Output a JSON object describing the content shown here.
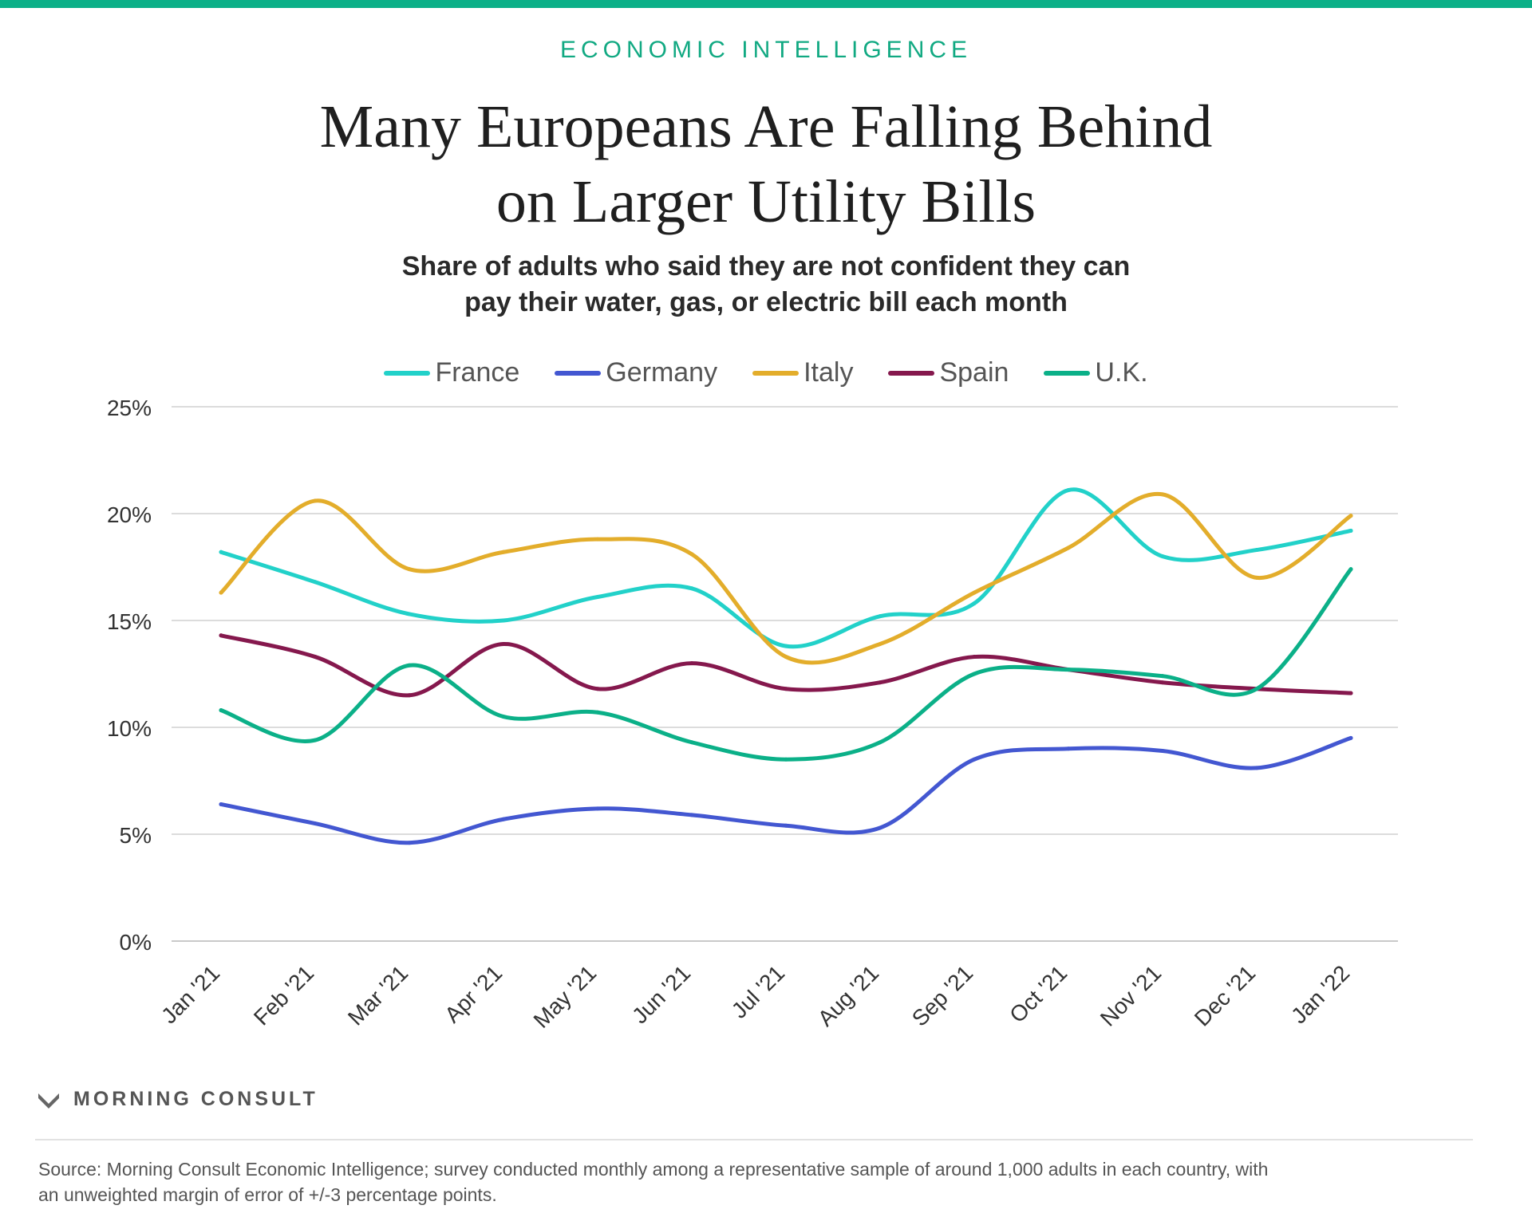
{
  "header": {
    "kicker": "ECONOMIC INTELLIGENCE",
    "title_line1": "Many Europeans Are Falling Behind",
    "title_line2": "on Larger Utility Bills",
    "subtitle_line1": "Share of adults who said they are not confident they can",
    "subtitle_line2": "pay their water, gas, or electric bill each month"
  },
  "chart_data": {
    "type": "line",
    "title": "Many Europeans Are Falling Behind on Larger Utility Bills",
    "subtitle": "Share of adults who said they are not confident they can pay their water, gas, or electric bill each month",
    "x": [
      "Jan '21",
      "Feb '21",
      "Mar '21",
      "Apr '21",
      "May '21",
      "Jun '21",
      "Jul '21",
      "Aug '21",
      "Sep '21",
      "Oct '21",
      "Nov '21",
      "Dec '21",
      "Jan '22"
    ],
    "ylim": [
      0,
      25
    ],
    "yticks": [
      0,
      5,
      10,
      15,
      20,
      25
    ],
    "ytick_labels": [
      "0%",
      "5%",
      "10%",
      "15%",
      "20%",
      "25%"
    ],
    "grid": true,
    "legend_position": "top-center",
    "series": [
      {
        "name": "France",
        "color": "#22d1c9",
        "values": [
          18.2,
          16.8,
          15.3,
          15.0,
          16.1,
          16.5,
          13.8,
          15.2,
          15.8,
          21.1,
          18.0,
          18.3,
          19.2
        ]
      },
      {
        "name": "Germany",
        "color": "#4357d1",
        "values": [
          6.4,
          5.5,
          4.6,
          5.7,
          6.2,
          5.9,
          5.4,
          5.3,
          8.5,
          9.0,
          8.9,
          8.1,
          9.5
        ]
      },
      {
        "name": "Italy",
        "color": "#e3ad2b",
        "values": [
          16.3,
          20.6,
          17.4,
          18.2,
          18.8,
          18.1,
          13.3,
          13.9,
          16.3,
          18.4,
          20.9,
          17.0,
          19.9
        ]
      },
      {
        "name": "Spain",
        "color": "#85184d",
        "values": [
          14.3,
          13.3,
          11.5,
          13.9,
          11.8,
          13.0,
          11.8,
          12.1,
          13.3,
          12.7,
          12.1,
          11.8,
          11.6
        ]
      },
      {
        "name": "U.K.",
        "color": "#0bb088",
        "values": [
          10.8,
          9.4,
          12.9,
          10.5,
          10.7,
          9.3,
          8.5,
          9.3,
          12.5,
          12.7,
          12.4,
          11.8,
          17.4
        ]
      }
    ]
  },
  "footer": {
    "brand": "MORNING CONSULT",
    "source_line1": "Source: Morning Consult Economic Intelligence; survey conducted monthly among a representative sample of around 1,000 adults in each country, with",
    "source_line2": "an unweighted margin of error of +/-3 percentage points."
  }
}
